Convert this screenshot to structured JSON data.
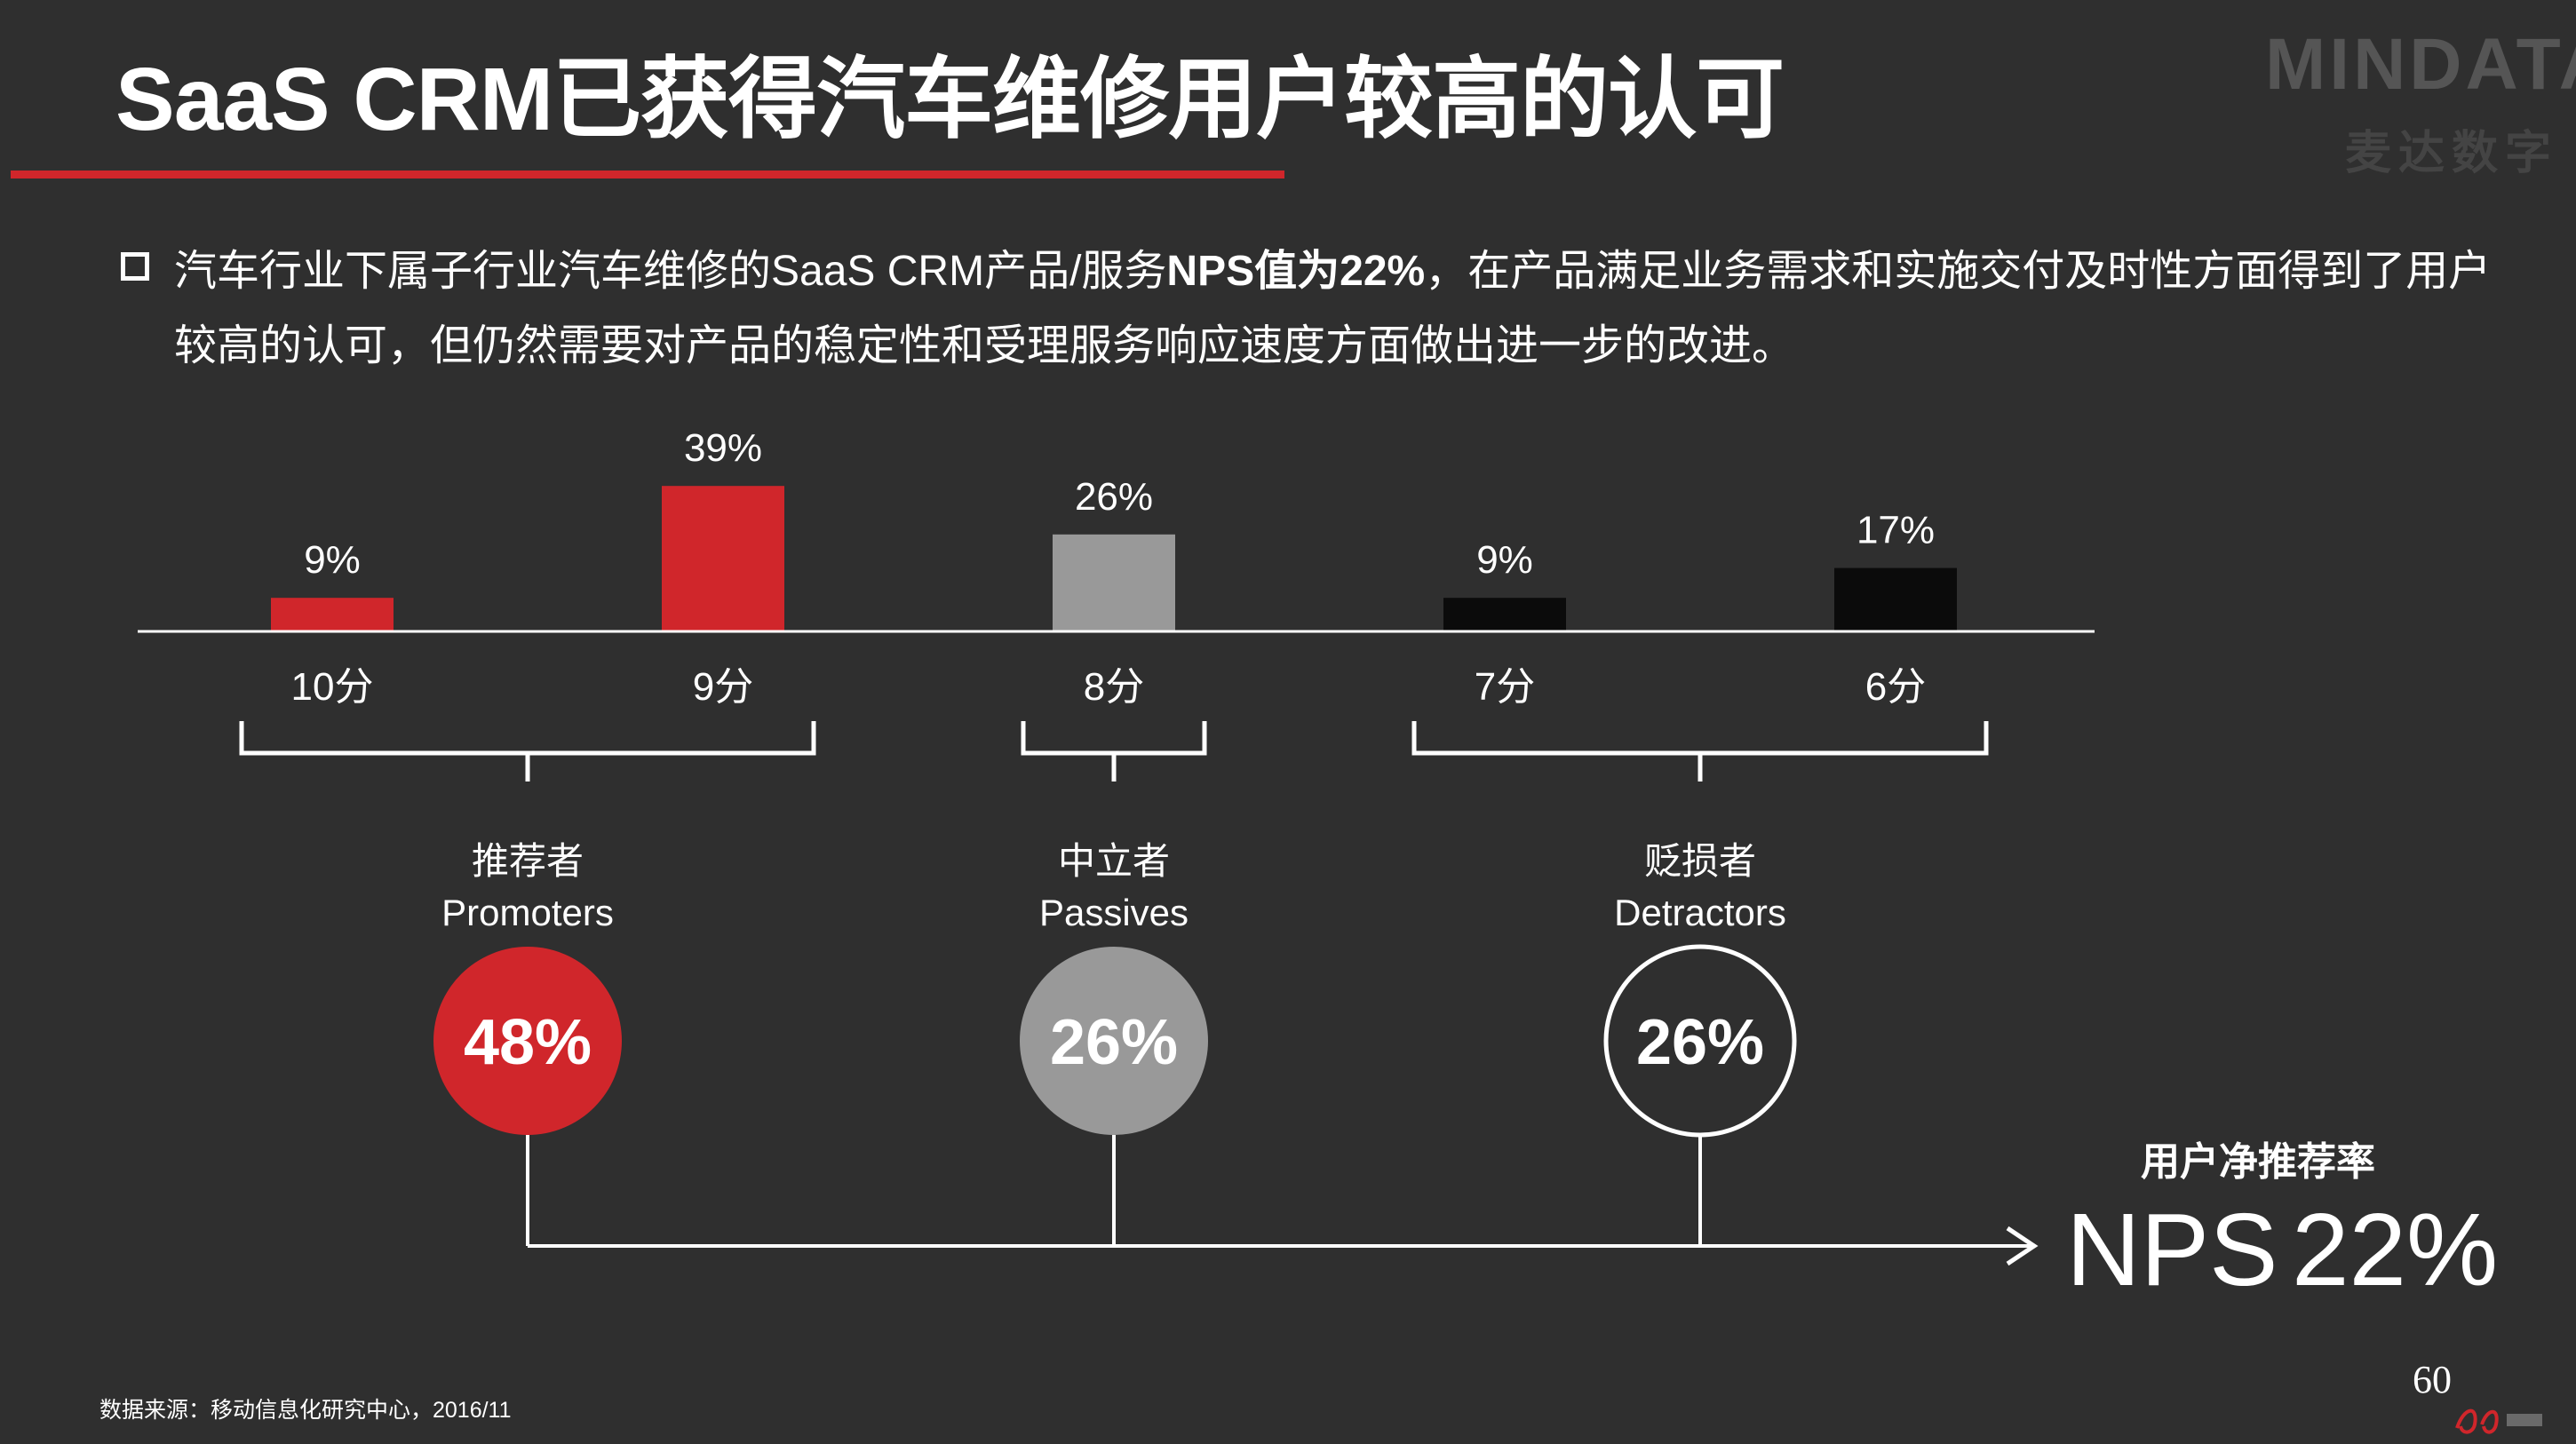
{
  "title": "SaaS CRM已获得汽车维修用户较高的认可",
  "logo": {
    "word": "MINDATA",
    "sub": "麦达数字"
  },
  "bullet": {
    "part1": "汽车行业下属子行业汽车维修的SaaS CRM产品/服务",
    "bold": "NPS值为22%",
    "part2": "，在产品满足业务需求和实施交付及时性方面得到了用户较高的认可，但仍然需要对产品的稳定性和受理服务响应速度方面做出进一步的改进。"
  },
  "colors": {
    "accent": "#d0262b",
    "neutral": "#999999",
    "dark": "#0b0b0b",
    "background": "#2f2f2f",
    "text": "#ffffff"
  },
  "chart_data": {
    "type": "bar",
    "categories": [
      "10分",
      "9分",
      "8分",
      "7分",
      "6分"
    ],
    "values": [
      9,
      39,
      26,
      9,
      17
    ],
    "value_labels": [
      "9%",
      "39%",
      "26%",
      "9%",
      "17%"
    ],
    "bar_colors": [
      "#d0262b",
      "#d0262b",
      "#999999",
      "#0b0b0b",
      "#0b0b0b"
    ],
    "groups": [
      {
        "name_cn": "推荐者",
        "name_en": "Promoters",
        "value_label": "48%",
        "color": "#d0262b",
        "style": "filled",
        "span": [
          0,
          1
        ]
      },
      {
        "name_cn": "中立者",
        "name_en": "Passives",
        "value_label": "26%",
        "color": "#999999",
        "style": "filled",
        "span": [
          2,
          2
        ]
      },
      {
        "name_cn": "贬损者",
        "name_en": "Detractors",
        "value_label": "26%",
        "color": "#ffffff",
        "style": "outline",
        "span": [
          3,
          4
        ]
      }
    ],
    "result": {
      "caption": "用户净推荐率",
      "label": "NPS",
      "value": "22%"
    }
  },
  "footer": {
    "source": "数据来源：移动信息化研究中心，2016/11",
    "page_number": "60"
  }
}
